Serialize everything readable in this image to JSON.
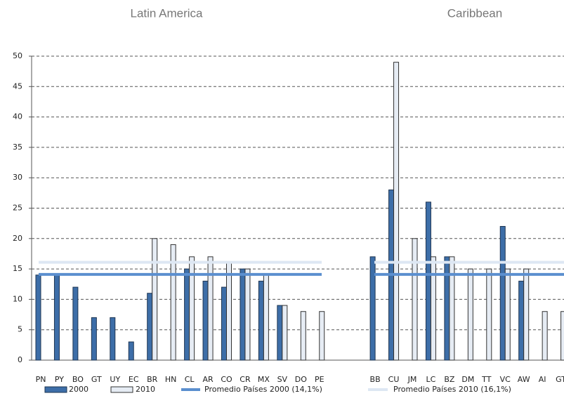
{
  "chart_data": {
    "type": "bar",
    "group_titles": [
      "Latin America",
      "Caribbean"
    ],
    "categories": [
      "PN",
      "PY",
      "BO",
      "GT",
      "UY",
      "EC",
      "BR",
      "HN",
      "CL",
      "AR",
      "CO",
      "CR",
      "MX",
      "SV",
      "DO",
      "PE",
      null,
      null,
      "BB",
      "CU",
      "JM",
      "LC",
      "BZ",
      "DM",
      "TT",
      "VC",
      "AW",
      "AI",
      "GT"
    ],
    "series": [
      {
        "name": "2000",
        "color": "#3d6ea8",
        "values": [
          14,
          14,
          12,
          7,
          7,
          3,
          11,
          null,
          15,
          13,
          12,
          15,
          13,
          9,
          null,
          null,
          null,
          null,
          17,
          28,
          null,
          26,
          17,
          null,
          null,
          22,
          13,
          null,
          null
        ]
      },
      {
        "name": "2010",
        "color": "#e6ecf4",
        "values": [
          null,
          null,
          null,
          null,
          null,
          null,
          20,
          19,
          17,
          17,
          16,
          15,
          14,
          9,
          8,
          8,
          null,
          null,
          null,
          49,
          20,
          17,
          17,
          15,
          15,
          15,
          15,
          8,
          8
        ]
      }
    ],
    "reference_lines": [
      {
        "name": "Promedio Países 2000 (14,1%)",
        "color": "#5b8fcf",
        "value": 14.1
      },
      {
        "name": "Promedio Países 2010 (16,1%)",
        "color": "#dde7f3",
        "value": 16.1
      }
    ],
    "ylim": [
      0,
      50
    ],
    "yticks": [
      0,
      5,
      10,
      15,
      20,
      25,
      30,
      35,
      40,
      45,
      50
    ],
    "grid": true
  }
}
